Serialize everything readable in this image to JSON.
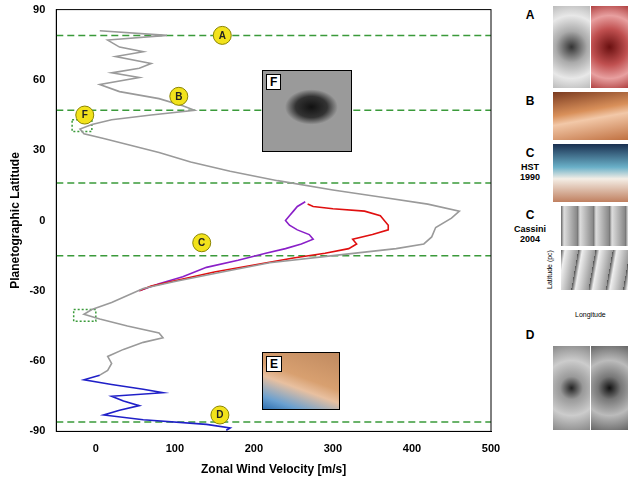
{
  "chart_data": {
    "type": "line",
    "x_label": "Zonal Wind Velocity [m/s]",
    "y_label": "Planetographic Latitude",
    "xlim": [
      -50,
      500
    ],
    "xticks": [
      0,
      100,
      200,
      300,
      400,
      500
    ],
    "ylim": [
      -90,
      90
    ],
    "yticks": [
      -90,
      -60,
      -30,
      0,
      30,
      60,
      90
    ],
    "grid": false,
    "series": [
      {
        "color": "#9a9a9a",
        "x": [
          5,
          90,
          15,
          30,
          60,
          25,
          70,
          55,
          20,
          55,
          5,
          30,
          80,
          110,
          125,
          70,
          20,
          -5,
          -20,
          -15,
          10,
          45,
          80,
          120,
          170,
          230,
          300,
          360,
          420,
          460,
          450,
          430,
          425,
          415,
          380,
          300,
          220,
          160,
          100,
          60,
          40,
          20,
          -5,
          -15,
          5,
          40,
          80,
          85,
          60,
          35,
          15,
          20,
          15,
          5
        ],
        "y": [
          81,
          79,
          77,
          74,
          72,
          70,
          67,
          65,
          63,
          61,
          58,
          55,
          52,
          49,
          47,
          45,
          43,
          41,
          39,
          37,
          35,
          32,
          29,
          25,
          21,
          17,
          13,
          10,
          7,
          4,
          1,
          -3,
          -7,
          -10,
          -12,
          -15,
          -18,
          -22,
          -26,
          -29,
          -32,
          -35,
          -38,
          -40,
          -42,
          -45,
          -48,
          -50,
          -52,
          -55,
          -58,
          -61,
          -64,
          -66
        ]
      },
      {
        "color": "#2020c8",
        "x": [
          5,
          -15,
          20,
          60,
          85,
          20,
          35,
          55,
          30,
          10,
          60,
          140,
          170,
          165
        ],
        "y": [
          -66,
          -68,
          -70,
          -72,
          -73.5,
          -75,
          -77,
          -79,
          -81,
          -83,
          -85,
          -87,
          -88.5,
          -89.5
        ]
      },
      {
        "color": "#e01010",
        "x": [
          268,
          275,
          300,
          340,
          360,
          365,
          370,
          370,
          350,
          325,
          330,
          320,
          290,
          250,
          200,
          150,
          110,
          70,
          55
        ],
        "y": [
          7,
          6,
          5,
          4,
          2,
          0,
          -2,
          -4,
          -6,
          -8,
          -10,
          -12,
          -14,
          -16,
          -19,
          -22,
          -25,
          -28,
          -30
        ]
      },
      {
        "color": "#8a20c8",
        "x": [
          265,
          255,
          250,
          245,
          240,
          245,
          255,
          270,
          275,
          260,
          240,
          215,
          180,
          140,
          110,
          80,
          55
        ],
        "y": [
          8,
          6,
          4,
          2,
          0,
          -2,
          -4,
          -6,
          -8,
          -10,
          -12,
          -14,
          -17,
          -20,
          -24,
          -27,
          -30
        ]
      }
    ],
    "reference_lines": {
      "y": [
        79,
        47,
        16,
        -15,
        -86
      ],
      "color": "#3a9a3a",
      "line_style": "dashed"
    },
    "boxes": {
      "color": "#3a9a3a",
      "line_style": "dotted",
      "items": [
        {
          "x": [
            -30,
            -5
          ],
          "y": [
            38,
            43
          ]
        },
        {
          "x": [
            -28,
            0
          ],
          "y": [
            -43,
            -38
          ]
        }
      ]
    },
    "markers": {
      "color": "#f2e21b",
      "items": [
        {
          "label": "A",
          "x": 160,
          "y": 79
        },
        {
          "label": "B",
          "x": 105,
          "y": 53
        },
        {
          "label": "C",
          "x": 134,
          "y": -9.5
        },
        {
          "label": "D",
          "x": 157,
          "y": -83
        },
        {
          "label": "F",
          "x": -14,
          "y": 45
        }
      ]
    }
  },
  "panels": [
    {
      "label": "A"
    },
    {
      "label": "B"
    },
    {
      "label": "C",
      "caption": "HST 1990"
    },
    {
      "label": "C",
      "caption": "Cassini 2004",
      "x_label": "Longitude",
      "y_label": "Latitude (pc)"
    },
    {
      "label": "D"
    }
  ],
  "insets": [
    {
      "label": "F"
    },
    {
      "label": "E"
    }
  ]
}
